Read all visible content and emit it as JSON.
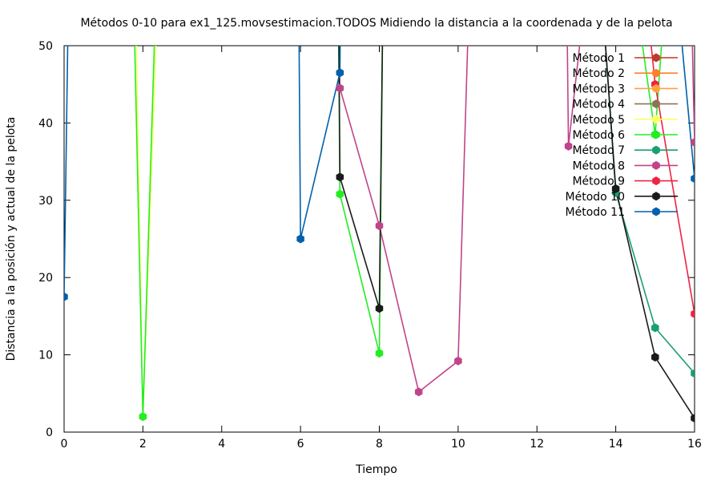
{
  "chart_data": {
    "type": "line",
    "title": "Métodos 0-10 para ex1_125.movsestimacion.TODOS Midiendo la distancia a la coordenada y de la pelota",
    "xlabel": "Tiempo",
    "ylabel": "Distancia a la posición y actual de la pelota",
    "xlim": [
      0,
      16
    ],
    "ylim": [
      0,
      50
    ],
    "x_ticks": [
      0,
      2,
      4,
      6,
      8,
      10,
      12,
      14,
      16
    ],
    "y_ticks": [
      0,
      10,
      20,
      30,
      40,
      50
    ],
    "grid": false,
    "legend_position": "top-right",
    "series": [
      {
        "name": "Método 1",
        "color": "#c0392b",
        "points": []
      },
      {
        "name": "Método 2",
        "color": "#ff7f2a",
        "points": []
      },
      {
        "name": "Método 3",
        "color": "#ffa040",
        "points": []
      },
      {
        "name": "Método 4",
        "color": "#8b7355",
        "points": []
      },
      {
        "name": "Método 5",
        "color": "#ffff66",
        "points": [
          [
            1.8,
            60
          ],
          [
            2,
            2
          ],
          [
            2.4,
            60
          ]
        ]
      },
      {
        "name": "Método 6",
        "color": "#22ee22",
        "points": [
          [
            1.75,
            60
          ],
          [
            2,
            2
          ],
          [
            2.35,
            60
          ],
          [
            6.95,
            60
          ],
          [
            7,
            30.8
          ],
          [
            8,
            10.2
          ],
          [
            8.1,
            60
          ],
          [
            14.4,
            60
          ],
          [
            15,
            38.5
          ],
          [
            15.3,
            60
          ]
        ]
      },
      {
        "name": "Método 7",
        "color": "#1a9f70",
        "points": [
          [
            13.6,
            60
          ],
          [
            14,
            31
          ],
          [
            15,
            13.5
          ],
          [
            16,
            7.6
          ]
        ]
      },
      {
        "name": "Método 8",
        "color": "#c0448a",
        "points": [
          [
            6.96,
            60
          ],
          [
            7,
            44.5
          ],
          [
            8,
            26.7
          ],
          [
            9,
            5.2
          ],
          [
            10,
            9.2
          ],
          [
            10.3,
            60
          ],
          [
            12.75,
            60
          ],
          [
            12.8,
            37
          ],
          [
            13.3,
            60
          ],
          [
            15.9,
            60
          ],
          [
            16,
            37.5
          ]
        ]
      },
      {
        "name": "Método 9",
        "color": "#ee2244",
        "points": [
          [
            14.7,
            60
          ],
          [
            15,
            45
          ],
          [
            16,
            15.3
          ]
        ]
      },
      {
        "name": "Método 10",
        "color": "#1a1a1a",
        "points": [
          [
            6.96,
            60
          ],
          [
            7,
            33
          ],
          [
            8,
            16
          ],
          [
            8.1,
            60
          ],
          [
            13.6,
            60
          ],
          [
            14,
            31.5
          ],
          [
            15,
            9.7
          ],
          [
            16,
            1.8
          ]
        ]
      },
      {
        "name": "Método 11",
        "color": "#0060ad",
        "points": [
          [
            0,
            17.5
          ],
          [
            0.12,
            60
          ],
          [
            5.95,
            60
          ],
          [
            6,
            25
          ],
          [
            7,
            46.5
          ],
          [
            7.02,
            60
          ],
          [
            15.5,
            60
          ],
          [
            16,
            32.8
          ]
        ]
      }
    ]
  }
}
